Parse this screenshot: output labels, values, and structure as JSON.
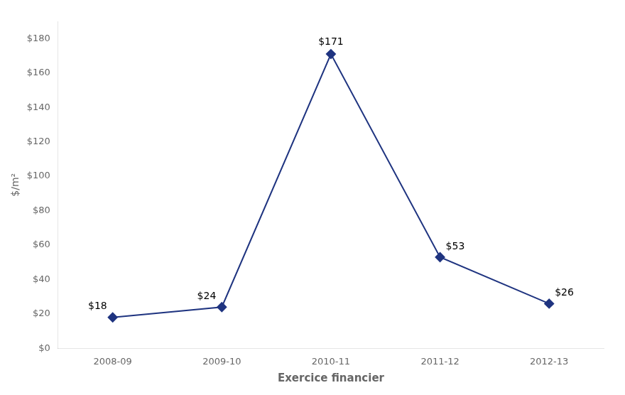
{
  "chart_data": {
    "type": "line",
    "categories": [
      "2008-09",
      "2009-10",
      "2010-11",
      "2011-12",
      "2012-13"
    ],
    "values": [
      18,
      24,
      171,
      53,
      26
    ],
    "value_labels": [
      "$18",
      "$24",
      "$171",
      "$53",
      "$26"
    ],
    "data_labels": true,
    "color": "#1F3480",
    "marker": "diamond",
    "xlabel": "Exercice financier",
    "ylabel": "$/m²",
    "ylim": [
      0,
      190
    ],
    "yticks": [
      {
        "value": 0,
        "label": "$0"
      },
      {
        "value": 20,
        "label": "$20"
      },
      {
        "value": 40,
        "label": "$40"
      },
      {
        "value": 60,
        "label": "$60"
      },
      {
        "value": 80,
        "label": "$80"
      },
      {
        "value": 100,
        "label": "$100"
      },
      {
        "value": 120,
        "label": "$120"
      },
      {
        "value": 140,
        "label": "$140"
      },
      {
        "value": 160,
        "label": "$160"
      },
      {
        "value": 180,
        "label": "$180"
      }
    ],
    "grid": false
  }
}
